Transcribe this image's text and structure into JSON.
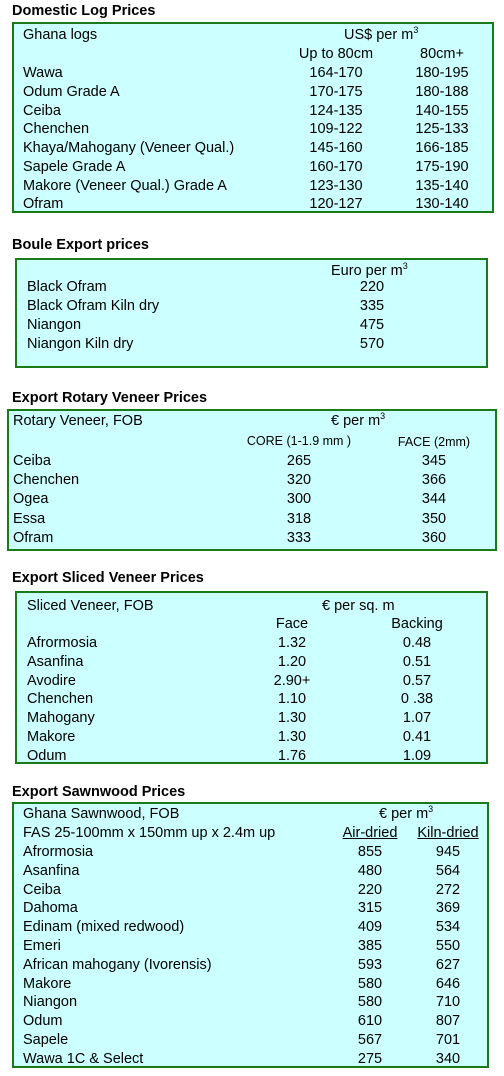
{
  "domestic": {
    "title": "Domestic Log Prices",
    "header": "Ghana logs",
    "unit": "US$ per m",
    "unit_sup": "3",
    "col1": "Up to 80cm",
    "col2": "80cm+",
    "rows": [
      {
        "name": "Wawa",
        "a": "164-170",
        "b": "180-195"
      },
      {
        "name": "Odum Grade A",
        "a": "170-175",
        "b": "180-188"
      },
      {
        "name": "Ceiba",
        "a": "124-135",
        "b": "140-155"
      },
      {
        "name": "Chenchen",
        "a": "109-122",
        "b": "125-133"
      },
      {
        "name": "Khaya/Mahogany (Veneer Qual.)",
        "a": "145-160",
        "b": "166-185"
      },
      {
        "name": "Sapele Grade A",
        "a": "160-170",
        "b": "175-190"
      },
      {
        "name": "Makore (Veneer Qual.) Grade A",
        "a": "123-130",
        "b": "135-140"
      },
      {
        "name": "Ofram",
        "a": "120-127",
        "b": "130-140"
      }
    ]
  },
  "boule": {
    "title": "Boule Export prices",
    "unit": "Euro per m",
    "unit_sup": "3",
    "rows": [
      {
        "name": "Black Ofram",
        "a": "220"
      },
      {
        "name": "Black Ofram  Kiln dry",
        "a": "335"
      },
      {
        "name": "Niangon",
        "a": "475"
      },
      {
        "name": "Niangon Kiln dry",
        "a": "570"
      }
    ]
  },
  "rotary": {
    "title": "Export Rotary Veneer Prices",
    "header": "Rotary Veneer,  FOB",
    "unit": "€  per m",
    "unit_sup": "3",
    "col1": "CORE (1-1.9 mm )",
    "col2": "FACE (2mm)",
    "rows": [
      {
        "name": "Ceiba",
        "a": "265",
        "b": "345"
      },
      {
        "name": "Chenchen",
        "a": "320",
        "b": "366"
      },
      {
        "name": "Ogea",
        "a": "300",
        "b": "344"
      },
      {
        "name": "Essa",
        "a": "318",
        "b": "350"
      },
      {
        "name": "Ofram",
        "a": "333",
        "b": "360"
      }
    ]
  },
  "sliced": {
    "title": "Export Sliced Veneer Prices",
    "header": "Sliced Veneer, FOB",
    "unit": "€ per sq. m",
    "col1": "Face",
    "col2": "Backing",
    "rows": [
      {
        "name": "Afrormosia",
        "a": "1.32",
        "b": "0.48"
      },
      {
        "name": "Asanfina",
        "a": "1.20",
        "b": "0.51"
      },
      {
        "name": "Avodire",
        "a": "2.90+",
        "b": "0.57"
      },
      {
        "name": "Chenchen",
        "a": "1.10",
        "b": "0 .38"
      },
      {
        "name": "Mahogany",
        "a": "1.30",
        "b": "1.07"
      },
      {
        "name": "Makore",
        "a": "1.30",
        "b": "0.41"
      },
      {
        "name": "Odum",
        "a": "1.76",
        "b": "1.09"
      }
    ]
  },
  "sawn": {
    "title": "Export Sawnwood Prices",
    "header": "Ghana Sawnwood, FOB",
    "unit": "€ per m",
    "unit_sup": "3",
    "subheader": "FAS 25-100mm x 150mm up x 2.4m up",
    "col1": "Air-dried",
    "col2": "Kiln-dried",
    "rows": [
      {
        "name": "Afrormosia",
        "a": "855",
        "b": "945"
      },
      {
        "name": "Asanfina",
        "a": "480",
        "b": "564"
      },
      {
        "name": "Ceiba",
        "a": "220",
        "b": "272"
      },
      {
        "name": "Dahoma",
        "a": "315",
        "b": "369"
      },
      {
        "name": "Edinam (mixed redwood)",
        "a": "409",
        "b": "534"
      },
      {
        "name": "Emeri",
        "a": "385",
        "b": "550"
      },
      {
        "name": "African mahogany (Ivorensis)",
        "a": "593",
        "b": "627"
      },
      {
        "name": "Makore",
        "a": "580",
        "b": "646"
      },
      {
        "name": "Niangon",
        "a": "580",
        "b": "710"
      },
      {
        "name": "Odum",
        "a": "610",
        "b": "807"
      },
      {
        "name": "Sapele",
        "a": "567",
        "b": "701"
      },
      {
        "name": "Wawa 1C & Select",
        "a": "275",
        "b": "340"
      }
    ]
  }
}
